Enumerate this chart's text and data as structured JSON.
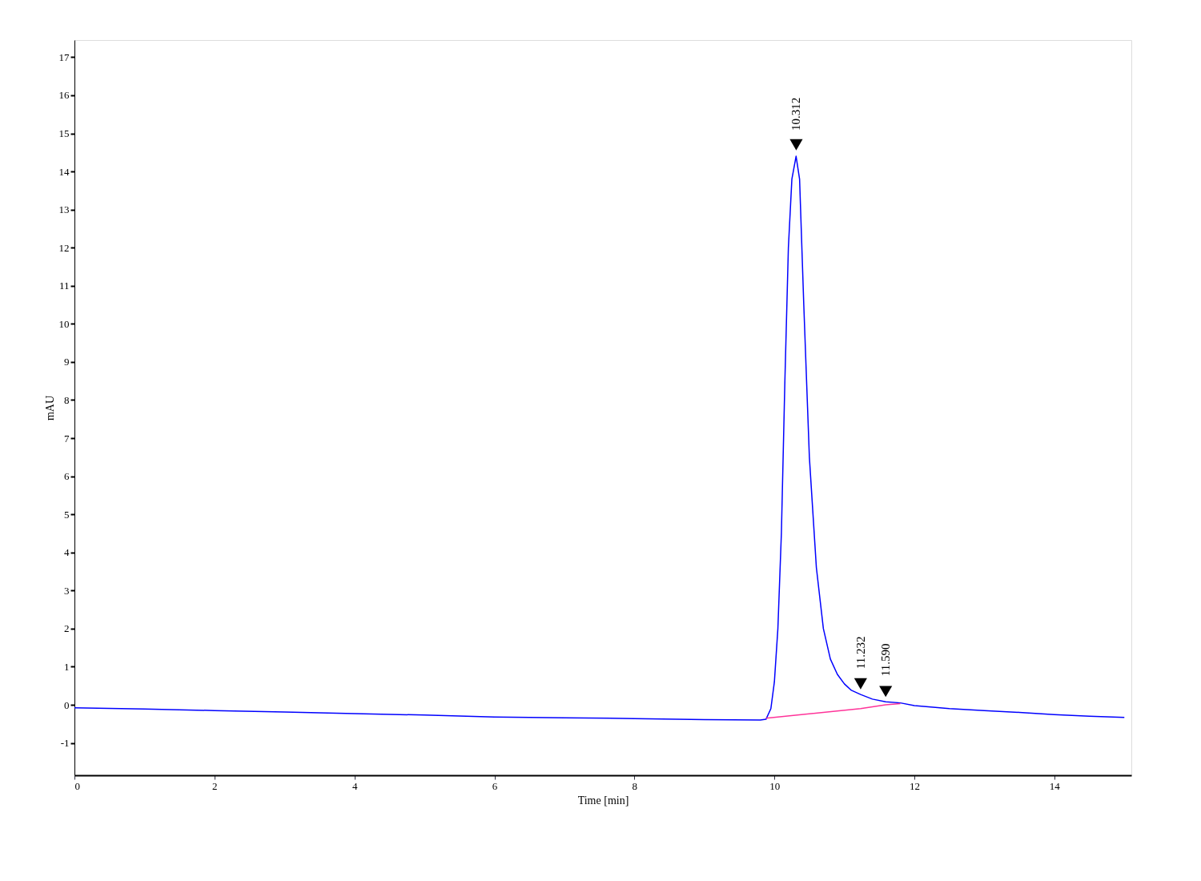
{
  "chart_data": {
    "type": "line",
    "xlabel": "Time [min]",
    "ylabel": "mAU",
    "xlim": [
      0,
      15.1
    ],
    "ylim": [
      -1.85,
      17.45
    ],
    "xticks": [
      0,
      2,
      4,
      6,
      8,
      10,
      12,
      14
    ],
    "yticks": [
      -1,
      0,
      1,
      2,
      3,
      4,
      5,
      6,
      7,
      8,
      9,
      10,
      11,
      12,
      13,
      14,
      15,
      16,
      17
    ],
    "grid": false,
    "line_style": "solid",
    "marker": "none",
    "series": [
      {
        "color": "#0000ff",
        "x": [
          0,
          1,
          2,
          3,
          4,
          5,
          6,
          7,
          8,
          9,
          9.8,
          9.88,
          9.95,
          10.0,
          10.05,
          10.1,
          10.15,
          10.2,
          10.25,
          10.31,
          10.36,
          10.42,
          10.5,
          10.6,
          10.7,
          10.8,
          10.9,
          11.0,
          11.1,
          11.232,
          11.4,
          11.59,
          11.8,
          12.0,
          12.5,
          13.0,
          13.5,
          14.0,
          14.5,
          15.0
        ],
        "values": [
          -0.08,
          -0.11,
          -0.15,
          -0.19,
          -0.23,
          -0.27,
          -0.32,
          -0.34,
          -0.36,
          -0.39,
          -0.4,
          -0.38,
          -0.1,
          0.6,
          2.0,
          4.5,
          8.5,
          12.0,
          13.8,
          14.4,
          13.8,
          10.5,
          6.5,
          3.6,
          2.0,
          1.2,
          0.8,
          0.55,
          0.38,
          0.27,
          0.15,
          0.08,
          0.05,
          -0.02,
          -0.1,
          -0.15,
          -0.2,
          -0.26,
          -0.3,
          -0.33
        ]
      },
      {
        "color": "#ff3399",
        "x": [
          9.88,
          11.232,
          11.59,
          11.8
        ],
        "values": [
          -0.35,
          -0.1,
          0.0,
          0.03
        ]
      },
      {
        "type": "scatter",
        "color": "#000000",
        "marker": "triangle",
        "x": [
          10.312,
          11.232,
          11.59
        ],
        "values": [
          14.7,
          0.55,
          0.35
        ]
      }
    ],
    "annotations": [
      {
        "text": "10.312",
        "x": 10.312,
        "y": 14.4
      },
      {
        "text": "11.232",
        "x": 11.232,
        "y": 0.27
      },
      {
        "text": "11.590",
        "x": 11.59,
        "y": 0.08
      }
    ]
  }
}
